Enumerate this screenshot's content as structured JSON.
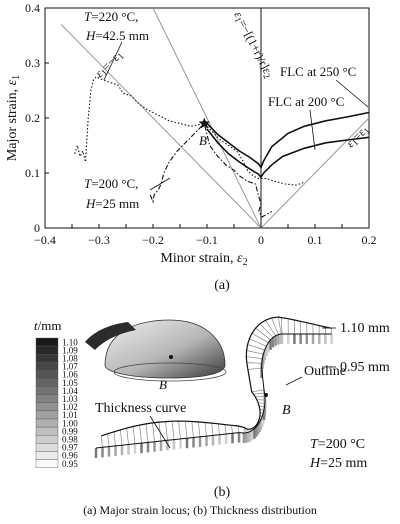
{
  "chart_data": {
    "type": "line",
    "panel_label": "(a)",
    "xlabel_main": "Minor strain, ",
    "xlabel_sym": "ε",
    "xlabel_sub": "2",
    "ylabel_main": "Major strain, ",
    "ylabel_sym": "ε",
    "ylabel_sub": "1",
    "xlim": [
      -0.4,
      0.2
    ],
    "ylim": [
      0.0,
      0.4
    ],
    "x_ticks": [
      "−0.4",
      "−0.35",
      "−0.3",
      "−0.25",
      "−0.2",
      "−0.15",
      "−0.1",
      "−0.05",
      "0",
      "0.05",
      "0.1",
      "0.15",
      "0.2"
    ],
    "x_tick_values": [
      -0.4,
      -0.35,
      -0.3,
      -0.25,
      -0.2,
      -0.15,
      -0.1,
      -0.05,
      0,
      0.05,
      0.1,
      0.15,
      0.2
    ],
    "y_ticks": [
      "0",
      "0.1",
      "0.2",
      "0.3",
      "0.4"
    ],
    "y_tick_values": [
      0,
      0.1,
      0.2,
      0.3,
      0.4
    ],
    "series": [
      {
        "name": "FLC at 250 °C",
        "style": "solid",
        "points": [
          [
            -0.1,
            0.19
          ],
          [
            -0.08,
            0.17
          ],
          [
            -0.06,
            0.155
          ],
          [
            -0.04,
            0.14
          ],
          [
            -0.02,
            0.128
          ],
          [
            -0.005,
            0.117
          ],
          [
            0.0,
            0.11
          ],
          [
            0.005,
            0.122
          ],
          [
            0.02,
            0.148
          ],
          [
            0.05,
            0.172
          ],
          [
            0.08,
            0.185
          ],
          [
            0.12,
            0.195
          ],
          [
            0.16,
            0.202
          ],
          [
            0.2,
            0.21
          ]
        ]
      },
      {
        "name": "FLC at 200 °C",
        "style": "solid",
        "points": [
          [
            -0.1,
            0.18
          ],
          [
            -0.08,
            0.155
          ],
          [
            -0.06,
            0.135
          ],
          [
            -0.04,
            0.12
          ],
          [
            -0.02,
            0.107
          ],
          [
            -0.005,
            0.098
          ],
          [
            0.0,
            0.092
          ],
          [
            0.005,
            0.1
          ],
          [
            0.02,
            0.115
          ],
          [
            0.04,
            0.13
          ],
          [
            0.08,
            0.145
          ],
          [
            0.12,
            0.155
          ],
          [
            0.16,
            0.16
          ],
          [
            0.2,
            0.165
          ]
        ]
      },
      {
        "name": "T=220 °C, H=42.5 mm",
        "style": "dotted",
        "points": [
          [
            -0.345,
            0.135
          ],
          [
            -0.34,
            0.15
          ],
          [
            -0.335,
            0.13
          ],
          [
            -0.33,
            0.14
          ],
          [
            -0.325,
            0.12
          ],
          [
            -0.32,
            0.2
          ],
          [
            -0.315,
            0.25
          ],
          [
            -0.31,
            0.27
          ],
          [
            -0.305,
            0.275
          ],
          [
            -0.295,
            0.27
          ],
          [
            -0.28,
            0.265
          ],
          [
            -0.265,
            0.26
          ],
          [
            -0.255,
            0.245
          ],
          [
            -0.24,
            0.24
          ],
          [
            -0.225,
            0.225
          ],
          [
            -0.21,
            0.215
          ],
          [
            -0.19,
            0.205
          ],
          [
            -0.17,
            0.195
          ],
          [
            -0.15,
            0.19
          ],
          [
            -0.13,
            0.185
          ],
          [
            -0.115,
            0.188
          ],
          [
            -0.105,
            0.19
          ],
          [
            -0.09,
            0.175
          ],
          [
            -0.075,
            0.16
          ],
          [
            -0.06,
            0.15
          ],
          [
            -0.045,
            0.14
          ],
          [
            -0.035,
            0.125
          ],
          [
            -0.025,
            0.105
          ],
          [
            -0.015,
            0.095
          ],
          [
            -0.005,
            0.09
          ],
          [
            0.01,
            0.09
          ],
          [
            0.025,
            0.085
          ],
          [
            0.045,
            0.08
          ],
          [
            0.065,
            0.078
          ],
          [
            0.08,
            0.083
          ]
        ]
      },
      {
        "name": "T=200 °C, H=25 mm",
        "style": "dashdot",
        "points": [
          [
            -0.205,
            0.06
          ],
          [
            -0.2,
            0.048
          ],
          [
            -0.198,
            0.06
          ],
          [
            -0.19,
            0.07
          ],
          [
            -0.185,
            0.08
          ],
          [
            -0.18,
            0.1
          ],
          [
            -0.17,
            0.12
          ],
          [
            -0.155,
            0.14
          ],
          [
            -0.14,
            0.155
          ],
          [
            -0.125,
            0.17
          ],
          [
            -0.115,
            0.18
          ],
          [
            -0.105,
            0.19
          ],
          [
            -0.095,
            0.15
          ],
          [
            -0.08,
            0.13
          ],
          [
            -0.065,
            0.115
          ],
          [
            -0.05,
            0.105
          ],
          [
            -0.04,
            0.095
          ],
          [
            -0.025,
            0.085
          ],
          [
            -0.01,
            0.08
          ],
          [
            -0.005,
            0.06
          ],
          [
            0.0,
            0.045
          ],
          [
            -0.004,
            0.03
          ],
          [
            0.002,
            0.02
          ],
          [
            0.01,
            0.025
          ],
          [
            0.02,
            0.03
          ]
        ]
      }
    ],
    "reference_lines": [
      {
        "label_lhs": "ε",
        "label_sub": "1",
        "label_rhs": "=−ε",
        "label_sub2": "1",
        "points": [
          [
            -0.37,
            0.37
          ],
          [
            0.0,
            0.0
          ]
        ]
      },
      {
        "label_lhs": "ε",
        "label_sub": "1",
        "label_rhs": "=ε",
        "label_sub2": "1",
        "points": [
          [
            0.0,
            0.0
          ],
          [
            0.2,
            0.2
          ]
        ]
      },
      {
        "label_lhs": "ε",
        "label_sub": "1",
        "label_rhs": "=−[(1+r)/r]ε",
        "label_sub2": "2",
        "points": [
          [
            -0.2,
            0.4
          ],
          [
            0.0,
            0.0
          ]
        ]
      }
    ],
    "annotations": {
      "t220": {
        "t_sym": "T",
        "t_val": "=220 °C,",
        "h_sym": "H",
        "h_val": "=42.5 mm"
      },
      "t200": {
        "t_sym": "T",
        "t_val": "=200 °C,",
        "h_sym": "H",
        "h_val": "=25 mm"
      },
      "flc250": "FLC at 250 °C",
      "flc200": "FLC at 200 °C",
      "point_b": "B",
      "star_point": [
        -0.105,
        0.19
      ]
    }
  },
  "panel_b": {
    "panel_label": "(b)",
    "legend_title_sym": "t",
    "legend_title_unit": "/mm",
    "legend_values": [
      "1.10",
      "1.09",
      "1.08",
      "1.07",
      "1.06",
      "1.05",
      "1.04",
      "1.03",
      "1.02",
      "1.01",
      "1.00",
      "0.99",
      "0.98",
      "0.97",
      "0.96",
      "0.95"
    ],
    "thickness_curve_label": "Thickness curve",
    "outline_label": "Outline",
    "label_110": "1.10 mm",
    "label_095": "0.95 mm",
    "point_b": "B",
    "point_b_3d": "B",
    "cond_t_sym": "T",
    "cond_t_val": "=200 °C",
    "cond_h_sym": "H",
    "cond_h_val": "=25 mm"
  },
  "figure_caption": "(a) Major strain locus; (b) Thickness distribution"
}
